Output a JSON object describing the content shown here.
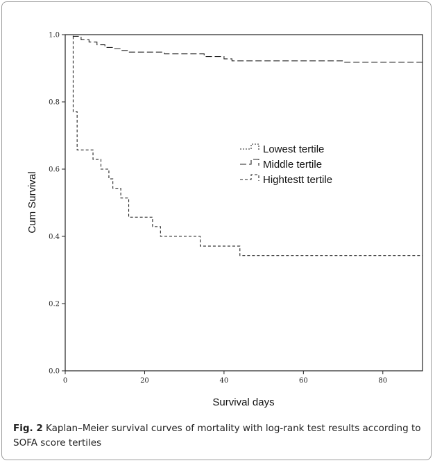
{
  "chart_data": {
    "type": "line",
    "step": true,
    "xlabel": "Survival days",
    "ylabel": "Cum Survival",
    "xlim": [
      0,
      90
    ],
    "ylim": [
      0.0,
      1.0
    ],
    "x_ticks": [
      0,
      20,
      40,
      60,
      80
    ],
    "y_ticks": [
      "0.0",
      "0.2",
      "0.4",
      "0.6",
      "0.8",
      "1.0"
    ],
    "grid": false,
    "legend_position": "center-right",
    "series": [
      {
        "name": "Lowest tertile",
        "dash": "2,2",
        "points": [
          [
            0,
            1.0
          ],
          [
            90,
            1.0
          ]
        ]
      },
      {
        "name": "Middle tertile",
        "dash": "9,4",
        "points": [
          [
            0,
            1.0
          ],
          [
            2,
            0.995
          ],
          [
            4,
            0.985
          ],
          [
            6,
            0.978
          ],
          [
            8,
            0.97
          ],
          [
            10,
            0.962
          ],
          [
            12,
            0.958
          ],
          [
            14,
            0.953
          ],
          [
            16,
            0.948
          ],
          [
            25,
            0.943
          ],
          [
            35,
            0.935
          ],
          [
            40,
            0.928
          ],
          [
            42,
            0.922
          ],
          [
            70,
            0.918
          ],
          [
            90,
            0.917
          ]
        ]
      },
      {
        "name": "Hightestt tertile",
        "dash": "4,3",
        "points": [
          [
            0,
            1.0
          ],
          [
            2,
            0.771
          ],
          [
            3,
            0.657
          ],
          [
            7,
            0.629
          ],
          [
            9,
            0.6
          ],
          [
            11,
            0.571
          ],
          [
            12,
            0.543
          ],
          [
            14,
            0.514
          ],
          [
            16,
            0.457
          ],
          [
            22,
            0.429
          ],
          [
            24,
            0.4
          ],
          [
            34,
            0.371
          ],
          [
            44,
            0.343
          ],
          [
            90,
            0.343
          ]
        ]
      }
    ]
  },
  "caption": {
    "label": "Fig. 2",
    "text": " Kaplan–Meier survival curves of mortality with log-rank test results according to SOFA score tertiles"
  }
}
